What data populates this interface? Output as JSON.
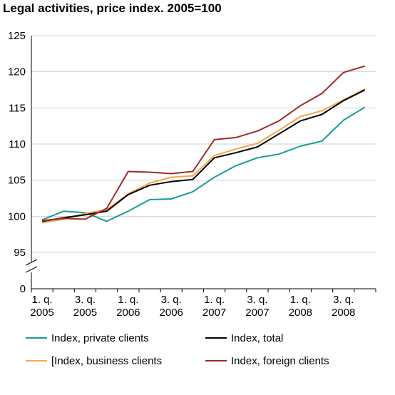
{
  "chart_data": {
    "type": "line",
    "title": "Legal activities, price index. 2005=100",
    "xlabel": "",
    "ylabel": "",
    "ylim": [
      95,
      125
    ],
    "y_axis_break": true,
    "grid": "horizontal",
    "legend_position": "bottom",
    "yticks": [
      "0",
      "95",
      "100",
      "105",
      "110",
      "115",
      "120",
      "125"
    ],
    "xtick_labels": [
      {
        "period": "1. q.",
        "year": "2005"
      },
      {
        "period": "3. q.",
        "year": "2005"
      },
      {
        "period": "1. q.",
        "year": "2006"
      },
      {
        "period": "3. q.",
        "year": "2006"
      },
      {
        "period": "1. q.",
        "year": "2007"
      },
      {
        "period": "3. q.",
        "year": "2007"
      },
      {
        "period": "1. q.",
        "year": "2008"
      },
      {
        "period": "3. q.",
        "year": "2008"
      }
    ],
    "categories": [
      "2005Q1",
      "2005Q2",
      "2005Q3",
      "2005Q4",
      "2006Q1",
      "2006Q2",
      "2006Q3",
      "2006Q4",
      "2007Q1",
      "2007Q2",
      "2007Q3",
      "2007Q4",
      "2008Q1",
      "2008Q2",
      "2008Q3",
      "2008Q4"
    ],
    "series": [
      {
        "name": "Index, private clients",
        "color": "#1a9c96",
        "values": [
          99.5,
          100.7,
          100.5,
          99.3,
          100.7,
          102.3,
          102.4,
          103.4,
          105.4,
          107.0,
          108.1,
          108.6,
          109.7,
          110.4,
          113.3,
          115.1
        ]
      },
      {
        "name": "[Index, business clients",
        "color": "#f5a64a",
        "values": [
          99.1,
          99.6,
          100.4,
          100.9,
          103.1,
          104.6,
          105.4,
          105.6,
          108.4,
          109.3,
          110.1,
          111.9,
          113.8,
          114.6,
          116.1,
          117.6
        ]
      },
      {
        "name": "Index, total",
        "color": "#000000",
        "values": [
          99.3,
          99.8,
          100.2,
          100.7,
          103.0,
          104.3,
          104.8,
          105.1,
          108.1,
          108.8,
          109.6,
          111.4,
          113.2,
          114.1,
          116.0,
          117.5
        ]
      },
      {
        "name": "Index, foreign clients",
        "color": "#9e2b2b",
        "values": [
          99.4,
          99.7,
          99.6,
          101.1,
          106.2,
          106.1,
          105.9,
          106.2,
          110.6,
          110.9,
          111.8,
          113.2,
          115.3,
          117.0,
          119.9,
          120.8
        ]
      }
    ],
    "legend": [
      {
        "label": "Index, private clients",
        "color": "#1a9c96"
      },
      {
        "label": "Index, total",
        "color": "#000000"
      },
      {
        "label": "[Index, business clients",
        "color": "#f5a64a"
      },
      {
        "label": "Index, foreign clients",
        "color": "#9e2b2b"
      }
    ]
  }
}
